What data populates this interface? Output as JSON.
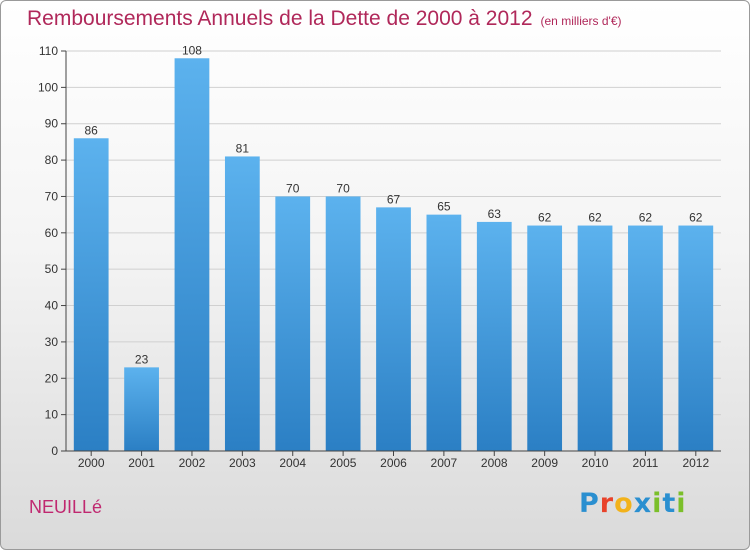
{
  "header": {
    "title": "Remboursements Annuels de la Dette de 2000 à 2012",
    "subtitle": "(en milliers d'€)"
  },
  "footer": {
    "commune": "NEUILLé",
    "logo": {
      "letters": [
        "P",
        "r",
        "o",
        "x",
        "i",
        "t",
        "i"
      ],
      "colors": [
        "#2a8fd0",
        "#e8422a",
        "#f2b21b",
        "#2a8fd0",
        "#7bbf2a",
        "#2a8fd0",
        "#7bbf2a"
      ]
    }
  },
  "colors": {
    "bar_top": "#5cb2ee",
    "bar_bottom": "#2b7fc4",
    "axis": "#444444",
    "grid": "#d0d0d0",
    "text": "#333333"
  },
  "chart_data": {
    "type": "bar",
    "categories": [
      "2000",
      "2001",
      "2002",
      "2003",
      "2004",
      "2005",
      "2006",
      "2007",
      "2008",
      "2009",
      "2010",
      "2011",
      "2012"
    ],
    "values": [
      86,
      23,
      108,
      81,
      70,
      70,
      67,
      65,
      63,
      62,
      62,
      62,
      62
    ],
    "title": "Remboursements Annuels de la Dette de 2000 à 2012",
    "xlabel": "",
    "ylabel": "",
    "ylim": [
      0,
      110
    ],
    "yticks": [
      0,
      10,
      20,
      30,
      40,
      50,
      60,
      70,
      80,
      90,
      100,
      110
    ],
    "grid": true,
    "data_labels": true
  }
}
